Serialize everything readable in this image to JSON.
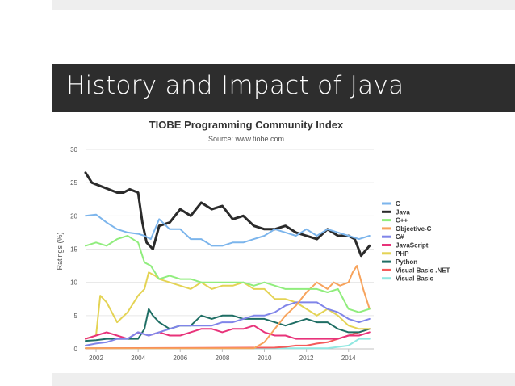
{
  "slide": {
    "title": "History and Impact of Java"
  },
  "chart_data": {
    "type": "line",
    "title": "TIOBE Programming Community Index",
    "subtitle": "Source: www.tiobe.com",
    "ylabel": "Ratings (%)",
    "xlabel": "",
    "xlim": [
      2001.5,
      2015.2
    ],
    "ylim": [
      0,
      30
    ],
    "xticks": [
      2002,
      2004,
      2006,
      2008,
      2010,
      2012,
      2014
    ],
    "yticks": [
      0,
      5,
      10,
      15,
      20,
      25,
      30
    ],
    "grid": "horizontal",
    "legend": "right",
    "series": [
      {
        "name": "C",
        "color": "#7cb5ec",
        "x": [
          2001.5,
          2002,
          2002.5,
          2003,
          2003.5,
          2004,
          2004.3,
          2004.6,
          2005,
          2005.5,
          2006,
          2006.5,
          2007,
          2007.5,
          2008,
          2008.5,
          2009,
          2009.5,
          2010,
          2010.5,
          2011,
          2011.5,
          2012,
          2012.5,
          2013,
          2013.5,
          2014,
          2014.5,
          2015
        ],
        "y": [
          20,
          20.2,
          19,
          18,
          17.5,
          17.3,
          17,
          16.5,
          19.5,
          18,
          18,
          16.5,
          16.5,
          15.5,
          15.5,
          16,
          16,
          16.5,
          17,
          18,
          17.5,
          17,
          18,
          17,
          18,
          17.5,
          17,
          16.5,
          17
        ]
      },
      {
        "name": "Java",
        "color": "#2b2b2b",
        "x": [
          2001.5,
          2001.8,
          2002.2,
          2002.6,
          2003,
          2003.3,
          2003.6,
          2004,
          2004.2,
          2004.4,
          2004.7,
          2005,
          2005.5,
          2006,
          2006.5,
          2007,
          2007.5,
          2008,
          2008.5,
          2009,
          2009.5,
          2010,
          2010.5,
          2011,
          2011.5,
          2012,
          2012.5,
          2013,
          2013.5,
          2014,
          2014.3,
          2014.6,
          2015
        ],
        "y": [
          26.5,
          25,
          24.5,
          24,
          23.5,
          23.5,
          24,
          23.5,
          19,
          16,
          15,
          18.5,
          19,
          21,
          20,
          22,
          21,
          21.5,
          19.5,
          20,
          18.5,
          18,
          18,
          18.5,
          17.5,
          17,
          16.5,
          18,
          17,
          17,
          16.5,
          14,
          15.5
        ]
      },
      {
        "name": "C++",
        "color": "#90ed7d",
        "x": [
          2001.5,
          2002,
          2002.5,
          2003,
          2003.5,
          2004,
          2004.3,
          2004.6,
          2005,
          2005.5,
          2006,
          2006.5,
          2007,
          2007.5,
          2008,
          2008.5,
          2009,
          2009.5,
          2010,
          2010.5,
          2011,
          2011.5,
          2012,
          2012.5,
          2013,
          2013.5,
          2014,
          2014.5,
          2015
        ],
        "y": [
          15.5,
          16,
          15.5,
          16.5,
          17,
          16,
          13,
          12.5,
          10.5,
          11,
          10.5,
          10.5,
          10,
          10,
          10,
          10,
          10,
          9.5,
          10,
          9.5,
          9,
          9,
          9,
          9,
          8.5,
          9,
          6,
          5.5,
          6
        ]
      },
      {
        "name": "Objective-C",
        "color": "#f7a35c",
        "x": [
          2001.5,
          2009.5,
          2010,
          2010.5,
          2011,
          2011.5,
          2012,
          2012.5,
          2013,
          2013.3,
          2013.6,
          2014,
          2014.2,
          2014.4,
          2014.7,
          2015
        ],
        "y": [
          0.1,
          0.1,
          1,
          3,
          5,
          6.5,
          8.5,
          10,
          9,
          10,
          9.5,
          10,
          11.5,
          12.5,
          9,
          6
        ]
      },
      {
        "name": "C#",
        "color": "#8085e9",
        "x": [
          2001.5,
          2002,
          2002.5,
          2003,
          2003.5,
          2004,
          2004.5,
          2005,
          2005.5,
          2006,
          2006.5,
          2007,
          2007.5,
          2008,
          2008.5,
          2009,
          2009.5,
          2010,
          2010.5,
          2011,
          2011.5,
          2012,
          2012.5,
          2013,
          2013.5,
          2014,
          2014.5,
          2015
        ],
        "y": [
          0.5,
          0.8,
          1,
          1.5,
          1.5,
          2.5,
          2,
          2.5,
          3,
          3.5,
          3.5,
          3.5,
          3.5,
          4,
          4,
          4.5,
          5,
          5,
          5.5,
          6.5,
          7,
          7,
          7,
          6,
          5.5,
          4.5,
          4,
          4.5
        ]
      },
      {
        "name": "JavaScript",
        "color": "#e8337a",
        "x": [
          2001.5,
          2002,
          2002.5,
          2003,
          2003.5,
          2004,
          2004.5,
          2005,
          2005.5,
          2006,
          2006.5,
          2007,
          2007.5,
          2008,
          2008.5,
          2009,
          2009.5,
          2010,
          2010.5,
          2011,
          2011.5,
          2012,
          2012.5,
          2013,
          2013.5,
          2014,
          2014.5,
          2015
        ],
        "y": [
          1.5,
          2,
          2.5,
          2,
          1.5,
          2.5,
          2,
          2.5,
          2,
          2,
          2.5,
          3,
          3,
          2.5,
          3,
          3,
          3.5,
          2.5,
          2,
          2,
          1.5,
          1.5,
          1.5,
          1.5,
          1.5,
          2,
          2,
          2.5
        ]
      },
      {
        "name": "PHP",
        "color": "#e4d354",
        "x": [
          2001.5,
          2002,
          2002.2,
          2002.5,
          2003,
          2003.5,
          2004,
          2004.3,
          2004.5,
          2004.8,
          2005,
          2005.5,
          2006,
          2006.5,
          2007,
          2007.5,
          2008,
          2008.5,
          2009,
          2009.5,
          2010,
          2010.5,
          2011,
          2011.5,
          2012,
          2012.5,
          2013,
          2013.5,
          2014,
          2014.5,
          2015
        ],
        "y": [
          1.5,
          2,
          8,
          7,
          4,
          5.5,
          8,
          9,
          11.5,
          11,
          10.5,
          10,
          9.5,
          9,
          10,
          9,
          9.5,
          9.5,
          10,
          9,
          9,
          7.5,
          7.5,
          7,
          6,
          5,
          6,
          5,
          3.5,
          3,
          3
        ]
      },
      {
        "name": "Python",
        "color": "#1f6e64",
        "x": [
          2001.5,
          2002,
          2002.5,
          2003,
          2003.5,
          2004,
          2004.3,
          2004.5,
          2004.7,
          2005,
          2005.5,
          2006,
          2006.5,
          2007,
          2007.5,
          2008,
          2008.5,
          2009,
          2009.5,
          2010,
          2010.5,
          2011,
          2011.5,
          2012,
          2012.5,
          2013,
          2013.5,
          2014,
          2014.5,
          2015
        ],
        "y": [
          1.2,
          1.3,
          1.5,
          1.5,
          1.5,
          1.5,
          3,
          6,
          5,
          4,
          3,
          3.5,
          3.5,
          5,
          4.5,
          5,
          5,
          4.5,
          4.5,
          4.5,
          4,
          3.5,
          4,
          4.5,
          4,
          4,
          3,
          2.5,
          2.5,
          3
        ]
      },
      {
        "name": "Visual Basic .NET",
        "color": "#f45b5b",
        "x": [
          2001.5,
          2010.5,
          2011,
          2011.5,
          2012,
          2012.5,
          2013,
          2013.5,
          2014,
          2014.5,
          2015
        ],
        "y": [
          0.1,
          0.2,
          0.3,
          0.5,
          0.5,
          0.8,
          1,
          1.5,
          2,
          2.5,
          3
        ]
      },
      {
        "name": "Visual Basic",
        "color": "#91e8e1",
        "x": [
          2001.5,
          2013,
          2014,
          2014.5,
          2015
        ],
        "y": [
          0.1,
          0.1,
          0.5,
          1.5,
          1.5
        ]
      }
    ]
  }
}
